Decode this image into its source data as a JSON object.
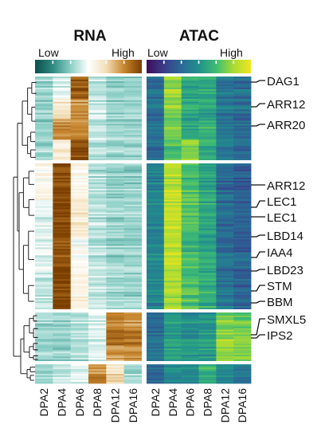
{
  "chart_data": {
    "type": "heatmap",
    "panels": [
      {
        "name": "RNA",
        "scale_low": "Low",
        "scale_high": "High",
        "colors": [
          "#0c4f4a",
          "#2f8a83",
          "#8ccfc6",
          "#ffffff",
          "#f2dfb8",
          "#c7862f",
          "#7a3e00"
        ],
        "columns": [
          "DPA2",
          "DPA4",
          "DPA6",
          "DPA8",
          "DPA12",
          "DPA16"
        ]
      },
      {
        "name": "ATAC",
        "scale_low": "Low",
        "scale_high": "High",
        "colors": [
          "#3f0d59",
          "#3a3d8a",
          "#2a6a95",
          "#21918c",
          "#3fbc73",
          "#a9dc33",
          "#f2e51d"
        ],
        "columns": [
          "DPA2",
          "DPA4",
          "DPA6",
          "DPA8",
          "DPA12",
          "DPA16"
        ]
      }
    ],
    "clusters": [
      {
        "rna": [
          [
            0.35,
            0.45,
            0.95,
            0.4,
            0.35,
            0.35
          ],
          [
            0.35,
            0.62,
            0.8,
            0.42,
            0.35,
            0.35
          ],
          [
            0.35,
            0.82,
            0.82,
            0.4,
            0.35,
            0.35
          ],
          [
            0.35,
            0.6,
            0.97,
            0.4,
            0.35,
            0.35
          ]
        ],
        "atac": [
          [
            0.35,
            0.82,
            0.58,
            0.58,
            0.38,
            0.35
          ],
          [
            0.35,
            0.78,
            0.6,
            0.58,
            0.38,
            0.35
          ],
          [
            0.35,
            0.75,
            0.58,
            0.62,
            0.38,
            0.35
          ],
          [
            0.35,
            0.7,
            0.78,
            0.6,
            0.4,
            0.35
          ]
        ]
      },
      {
        "rna": [
          [
            0.55,
            0.97,
            0.55,
            0.4,
            0.35,
            0.35
          ],
          [
            0.45,
            0.97,
            0.6,
            0.4,
            0.35,
            0.35
          ],
          [
            0.45,
            0.95,
            0.5,
            0.4,
            0.35,
            0.35
          ],
          [
            0.4,
            0.97,
            0.55,
            0.4,
            0.35,
            0.35
          ]
        ],
        "atac": [
          [
            0.45,
            0.88,
            0.68,
            0.58,
            0.35,
            0.3
          ],
          [
            0.45,
            0.9,
            0.7,
            0.58,
            0.35,
            0.3
          ],
          [
            0.45,
            0.88,
            0.65,
            0.58,
            0.35,
            0.3
          ],
          [
            0.45,
            0.85,
            0.68,
            0.6,
            0.38,
            0.3
          ]
        ]
      },
      {
        "rna": [
          [
            0.35,
            0.35,
            0.38,
            0.45,
            0.85,
            0.8
          ],
          [
            0.35,
            0.35,
            0.38,
            0.45,
            0.9,
            0.88
          ],
          [
            0.35,
            0.35,
            0.38,
            0.45,
            0.78,
            0.8
          ]
        ],
        "atac": [
          [
            0.35,
            0.55,
            0.5,
            0.52,
            0.78,
            0.75
          ],
          [
            0.35,
            0.55,
            0.5,
            0.52,
            0.8,
            0.78
          ],
          [
            0.35,
            0.55,
            0.5,
            0.52,
            0.78,
            0.75
          ]
        ]
      },
      {
        "rna": [
          [
            0.35,
            0.4,
            0.45,
            0.8,
            0.62,
            0.35
          ],
          [
            0.35,
            0.4,
            0.45,
            0.85,
            0.65,
            0.35
          ]
        ],
        "atac": [
          [
            0.35,
            0.48,
            0.48,
            0.62,
            0.48,
            0.4
          ],
          [
            0.35,
            0.48,
            0.48,
            0.62,
            0.5,
            0.4
          ]
        ]
      }
    ],
    "gene_labels": [
      "DAG1",
      "ARR12",
      "ARR20",
      "ARR12",
      "LEC1",
      "LEC1",
      "LBD14",
      "IAA4",
      "LBD23",
      "STM",
      "BBM",
      "SMXL5",
      "IPS2"
    ]
  }
}
